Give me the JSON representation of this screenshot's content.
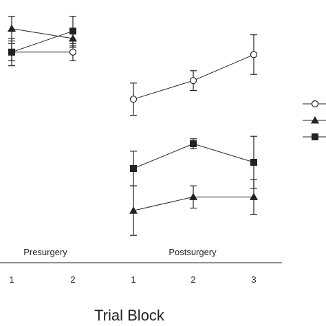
{
  "chart_data": {
    "type": "line",
    "xlabel": "Trial Block",
    "ylabel": "",
    "ylim": [
      0,
      10
    ],
    "grid": false,
    "legend": "right",
    "phases": [
      {
        "label": "Presurgery",
        "ticks": [
          "1",
          "2"
        ]
      },
      {
        "label": "Postsurgery",
        "ticks": [
          "1",
          "2",
          "3"
        ]
      }
    ],
    "series": [
      {
        "marker": "circle-open",
        "color": "#222222",
        "segments": [
          {
            "phase": 0,
            "values": [
              8.45,
              8.45
            ],
            "errors": [
              0.35,
              0.35
            ]
          },
          {
            "phase": 1,
            "values": [
              6.55,
              7.3,
              8.35
            ],
            "errors": [
              0.65,
              0.4,
              0.8
            ]
          }
        ]
      },
      {
        "marker": "triangle-filled",
        "color": "#222222",
        "segments": [
          {
            "phase": 0,
            "values": [
              9.4,
              9.0
            ],
            "errors": [
              0.5,
              0.35
            ]
          },
          {
            "phase": 1,
            "values": [
              2.05,
              2.6,
              2.6
            ],
            "errors": [
              1.0,
              0.45,
              0.7
            ]
          }
        ]
      },
      {
        "marker": "square-filled",
        "color": "#222222",
        "segments": [
          {
            "phase": 0,
            "values": [
              8.45,
              9.3
            ],
            "errors": [
              0.55,
              0.6
            ]
          },
          {
            "phase": 1,
            "values": [
              3.75,
              4.75,
              4.0
            ],
            "errors": [
              0.7,
              0.2,
              1.05
            ]
          }
        ]
      }
    ]
  }
}
